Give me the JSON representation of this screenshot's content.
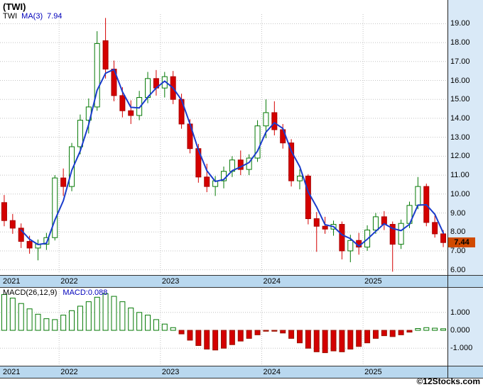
{
  "header": {
    "title": "(TWI)"
  },
  "main_chart": {
    "legend": {
      "symbol": "TWI",
      "ma_label": "MA(3)",
      "ma_value": "7.94"
    },
    "price_badge": "7.44"
  },
  "macd_chart": {
    "legend": {
      "label": "MACD(26,12,9)",
      "value": "MACD:0.088"
    }
  },
  "x_axis": {
    "years": [
      "2021",
      "2022",
      "2023",
      "2024",
      "2025"
    ]
  },
  "footer": {
    "watermark": "©12Stocks.com"
  },
  "colors": {
    "up": "#067a06",
    "down": "#d40000",
    "ma_line": "#1a3ccc",
    "grid": "#c4c4c4",
    "band_bg": "#b9d8ef",
    "strip_bg": "#d9e9f7",
    "badge_bg": "#d14a00",
    "legend_blue": "#0000bb"
  },
  "chart_data": [
    {
      "type": "candlestick",
      "title": "(TWI)",
      "timeframe": "monthly",
      "legend_position": "top-left",
      "grid": true,
      "months": [
        "2021-06",
        "2021-07",
        "2021-08",
        "2021-09",
        "2021-10",
        "2021-11",
        "2021-12",
        "2022-01",
        "2022-02",
        "2022-03",
        "2022-04",
        "2022-05",
        "2022-06",
        "2022-07",
        "2022-08",
        "2022-09",
        "2022-10",
        "2022-11",
        "2022-12",
        "2023-01",
        "2023-02",
        "2023-03",
        "2023-04",
        "2023-05",
        "2023-06",
        "2023-07",
        "2023-08",
        "2023-09",
        "2023-10",
        "2023-11",
        "2023-12",
        "2024-01",
        "2024-02",
        "2024-03",
        "2024-04",
        "2024-05",
        "2024-06",
        "2024-07",
        "2024-08",
        "2024-09",
        "2024-10",
        "2024-11",
        "2024-12",
        "2025-01",
        "2025-02",
        "2025-03",
        "2025-04",
        "2025-05",
        "2025-06",
        "2025-07",
        "2025-08",
        "2025-09",
        "2025-10"
      ],
      "ohlc": [
        [
          9.55,
          9.95,
          8.3,
          8.6
        ],
        [
          8.6,
          8.95,
          7.9,
          8.2
        ],
        [
          8.2,
          8.45,
          7.15,
          7.5
        ],
        [
          7.5,
          7.8,
          6.85,
          7.15
        ],
        [
          7.15,
          7.6,
          6.5,
          7.35
        ],
        [
          7.35,
          7.95,
          7.05,
          7.7
        ],
        [
          7.7,
          11.0,
          7.55,
          10.85
        ],
        [
          10.85,
          11.35,
          9.9,
          10.4
        ],
        [
          10.4,
          12.7,
          10.15,
          12.5
        ],
        [
          12.5,
          14.2,
          12.1,
          13.9
        ],
        [
          13.9,
          15.05,
          13.2,
          14.6
        ],
        [
          14.6,
          18.6,
          14.4,
          17.95
        ],
        [
          18.1,
          19.3,
          16.1,
          16.6
        ],
        [
          16.6,
          17.05,
          14.9,
          15.2
        ],
        [
          15.2,
          15.65,
          14.05,
          14.4
        ],
        [
          14.4,
          14.95,
          13.7,
          14.15
        ],
        [
          14.15,
          15.45,
          13.9,
          15.1
        ],
        [
          15.1,
          16.45,
          14.8,
          16.1
        ],
        [
          16.1,
          16.55,
          15.2,
          15.6
        ],
        [
          15.6,
          16.45,
          15.1,
          16.2
        ],
        [
          16.2,
          16.5,
          14.75,
          15.0
        ],
        [
          15.0,
          15.3,
          13.45,
          13.7
        ],
        [
          13.7,
          13.95,
          12.15,
          12.4
        ],
        [
          12.4,
          12.65,
          10.6,
          10.9
        ],
        [
          10.9,
          11.6,
          10.1,
          10.4
        ],
        [
          10.4,
          10.95,
          9.9,
          10.7
        ],
        [
          10.7,
          11.45,
          10.3,
          11.2
        ],
        [
          11.2,
          12.0,
          10.9,
          11.8
        ],
        [
          11.8,
          12.3,
          11.0,
          11.3
        ],
        [
          11.3,
          12.1,
          11.0,
          11.9
        ],
        [
          11.9,
          13.9,
          11.7,
          13.6
        ],
        [
          13.6,
          15.0,
          12.95,
          14.3
        ],
        [
          14.3,
          14.9,
          13.1,
          13.4
        ],
        [
          13.4,
          13.7,
          12.4,
          12.7
        ],
        [
          12.7,
          12.9,
          10.4,
          10.7
        ],
        [
          10.7,
          11.3,
          10.25,
          10.95
        ],
        [
          10.95,
          11.05,
          8.4,
          8.7
        ],
        [
          8.7,
          9.05,
          6.95,
          8.3
        ],
        [
          8.3,
          8.8,
          7.9,
          8.15
        ],
        [
          8.15,
          8.6,
          7.8,
          8.4
        ],
        [
          8.4,
          8.55,
          6.55,
          7.0
        ],
        [
          7.0,
          7.85,
          6.4,
          7.55
        ],
        [
          7.55,
          7.95,
          6.8,
          7.2
        ],
        [
          7.2,
          8.35,
          7.0,
          8.1
        ],
        [
          8.1,
          9.0,
          7.9,
          8.8
        ],
        [
          8.8,
          9.1,
          8.1,
          8.4
        ],
        [
          8.4,
          8.55,
          5.9,
          7.35
        ],
        [
          7.35,
          8.65,
          7.1,
          8.45
        ],
        [
          8.45,
          9.6,
          8.2,
          9.4
        ],
        [
          9.4,
          10.9,
          9.2,
          10.4
        ],
        [
          10.4,
          10.55,
          8.3,
          8.5
        ],
        [
          8.5,
          8.85,
          7.7,
          7.9
        ],
        [
          7.9,
          8.1,
          7.2,
          7.44
        ]
      ],
      "close_last": 7.44,
      "ma_overlay": {
        "label": "MA(3)",
        "window": 3,
        "last_value": 7.94
      },
      "ylim": [
        5.8,
        19.5
      ],
      "y_ticks": [
        "19.00",
        "18.00",
        "17.00",
        "16.00",
        "15.00",
        "14.00",
        "13.00",
        "12.00",
        "11.00",
        "10.00",
        "9.00",
        "8.00",
        "7.00",
        "6.00"
      ],
      "x_year_labels": [
        "2021",
        "2022",
        "2023",
        "2024",
        "2025"
      ]
    },
    {
      "type": "bar",
      "name": "MACD histogram",
      "params": "26,12,9",
      "last_value": 0.088,
      "values": [
        2.0,
        1.8,
        1.5,
        1.2,
        0.9,
        0.65,
        0.6,
        0.85,
        1.1,
        1.35,
        1.6,
        1.85,
        2.05,
        1.9,
        1.6,
        1.25,
        1.0,
        0.85,
        0.6,
        0.35,
        0.15,
        -0.2,
        -0.55,
        -0.85,
        -1.05,
        -1.1,
        -1.0,
        -0.8,
        -0.6,
        -0.45,
        -0.25,
        -0.05,
        -0.05,
        -0.15,
        -0.45,
        -0.7,
        -1.0,
        -1.2,
        -1.25,
        -1.15,
        -1.2,
        -1.05,
        -0.9,
        -0.7,
        -0.45,
        -0.3,
        -0.35,
        -0.25,
        -0.1,
        0.1,
        0.15,
        0.12,
        0.088
      ],
      "ylim": [
        -1.9,
        2.3
      ],
      "y_ticks": [
        "1.000",
        "0.000",
        "-1.000"
      ]
    }
  ]
}
